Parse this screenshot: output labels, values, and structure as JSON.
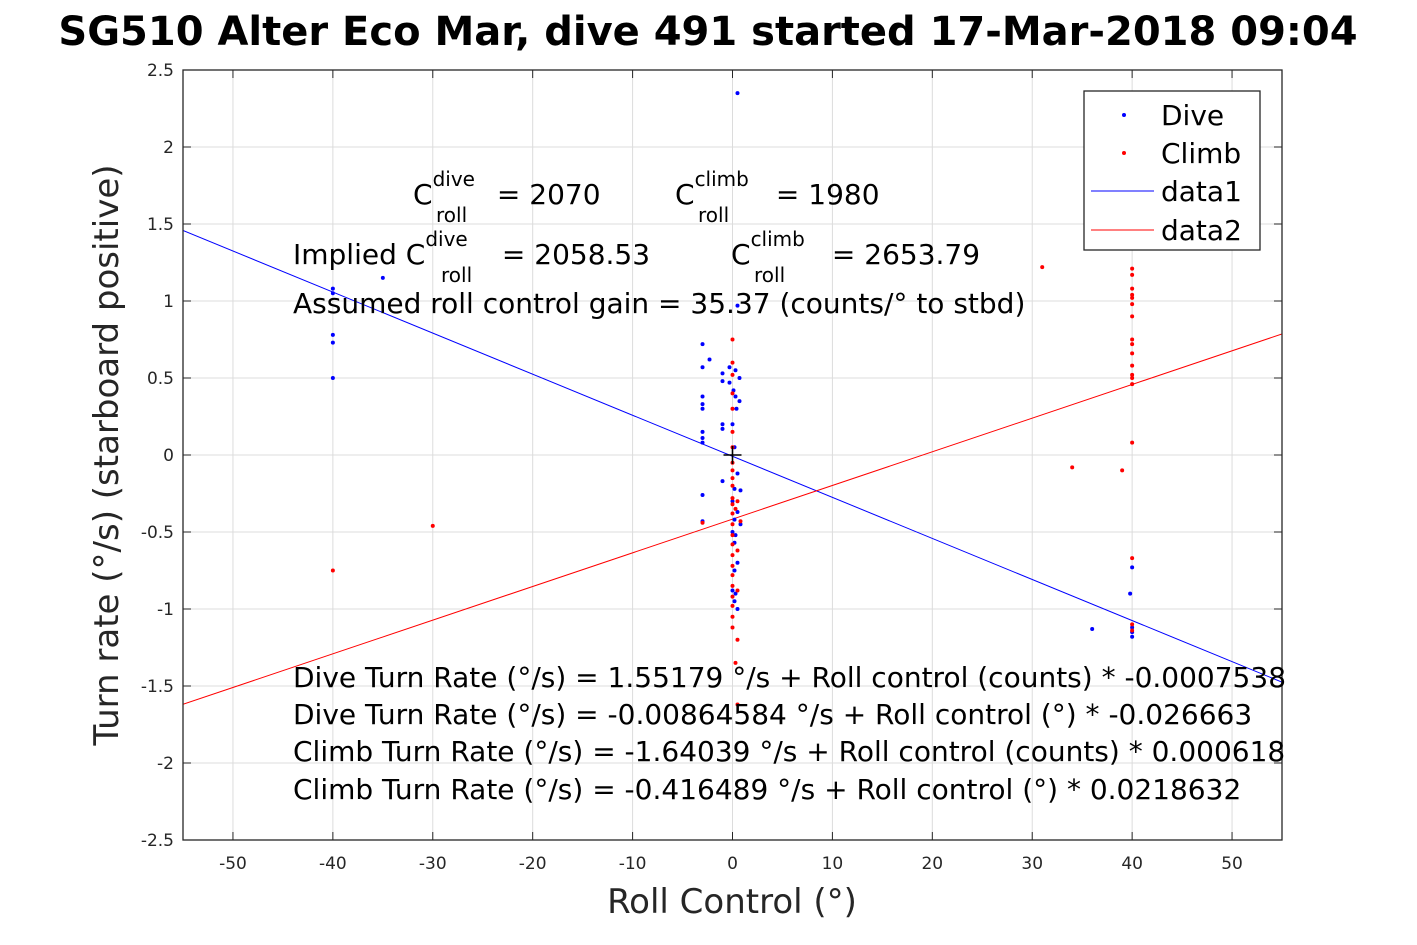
{
  "chart_data": {
    "type": "scatter",
    "title": "SG510 Alter Eco Mar, dive 491 started 17-Mar-2018 09:04",
    "xlabel": "Roll Control (°)",
    "ylabel": "Turn rate (°/s) (starboard positive)",
    "xlim": [
      -55,
      55
    ],
    "ylim": [
      -2.5,
      2.5
    ],
    "grid": true,
    "legend_position": "top-right",
    "x_ticks": [
      -50,
      -40,
      -30,
      -20,
      -10,
      0,
      10,
      20,
      30,
      40,
      50
    ],
    "y_ticks": [
      2.5,
      2,
      1.5,
      1,
      0.5,
      0,
      -0.5,
      -1,
      -1.5,
      -2,
      -2.5
    ],
    "x_tick_labels": [
      "-50",
      "-40",
      "-30",
      "-20",
      "-10",
      "0",
      "10",
      "20",
      "30",
      "40",
      "50"
    ],
    "y_tick_labels": [
      "2.5",
      "2",
      "1.5",
      "1",
      "0.5",
      "0",
      "-0.5",
      "-1",
      "-1.5",
      "-2",
      "-2.5"
    ],
    "series": [
      {
        "name": "Dive",
        "kind": "points",
        "color": "#0000ff",
        "points": [
          [
            -40,
            1.08
          ],
          [
            -40,
            1.05
          ],
          [
            -40,
            0.78
          ],
          [
            -40,
            0.73
          ],
          [
            -40,
            0.5
          ],
          [
            -35,
            1.15
          ],
          [
            -3,
            0.72
          ],
          [
            -2.3,
            0.62
          ],
          [
            -3,
            0.57
          ],
          [
            -1,
            0.53
          ],
          [
            -1,
            0.48
          ],
          [
            -3,
            0.38
          ],
          [
            -3,
            0.33
          ],
          [
            -3,
            0.3
          ],
          [
            -1,
            0.2
          ],
          [
            -1,
            0.17
          ],
          [
            -3,
            0.15
          ],
          [
            -3,
            0.11
          ],
          [
            -3,
            0.08
          ],
          [
            -1,
            -0.17
          ],
          [
            -3,
            -0.26
          ],
          [
            -3,
            -0.43
          ],
          [
            -0.3,
            0.57
          ],
          [
            0.3,
            0.55
          ],
          [
            -0.3,
            0.47
          ],
          [
            0.7,
            0.5
          ],
          [
            0.1,
            0.42
          ],
          [
            0.3,
            0.38
          ],
          [
            0.7,
            0.35
          ],
          [
            0.4,
            0.3
          ],
          [
            0,
            0.2
          ],
          [
            0.2,
            0.05
          ],
          [
            0.5,
            -0.12
          ],
          [
            0.2,
            -0.22
          ],
          [
            0.8,
            -0.23
          ],
          [
            0,
            -0.3
          ],
          [
            0.5,
            -0.37
          ],
          [
            0.2,
            -0.42
          ],
          [
            0.8,
            -0.45
          ],
          [
            0,
            -0.5
          ],
          [
            0.3,
            -0.52
          ],
          [
            0.2,
            -0.57
          ],
          [
            0.5,
            -0.7
          ],
          [
            0.2,
            -0.75
          ],
          [
            0,
            -0.88
          ],
          [
            0.3,
            -0.9
          ],
          [
            0.2,
            -0.95
          ],
          [
            0.5,
            -1.0
          ],
          [
            0.5,
            0.97
          ],
          [
            0.5,
            2.35
          ],
          [
            36,
            -1.13
          ],
          [
            39.8,
            -0.9
          ],
          [
            40,
            -0.73
          ],
          [
            40,
            -1.12
          ],
          [
            40,
            -1.15
          ],
          [
            40,
            -1.18
          ]
        ]
      },
      {
        "name": "Climb",
        "kind": "points",
        "color": "#ff0000",
        "points": [
          [
            -40,
            -0.75
          ],
          [
            -30,
            -0.46
          ],
          [
            -3,
            -0.44
          ],
          [
            0,
            0.75
          ],
          [
            0,
            0.6
          ],
          [
            0,
            0.52
          ],
          [
            0,
            0.4
          ],
          [
            0,
            0.3
          ],
          [
            0,
            0.15
          ],
          [
            0,
            0.05
          ],
          [
            0,
            -0.05
          ],
          [
            0,
            -0.1
          ],
          [
            0,
            -0.15
          ],
          [
            0,
            -0.2
          ],
          [
            0,
            -0.28
          ],
          [
            0,
            -0.32
          ],
          [
            0,
            -0.38
          ],
          [
            0,
            -0.45
          ],
          [
            0,
            -0.52
          ],
          [
            0,
            -0.58
          ],
          [
            0,
            -0.65
          ],
          [
            0,
            -0.72
          ],
          [
            0,
            -0.78
          ],
          [
            0,
            -0.85
          ],
          [
            0,
            -0.92
          ],
          [
            0,
            -0.98
          ],
          [
            0,
            -1.05
          ],
          [
            0,
            -1.12
          ],
          [
            0.3,
            -0.35
          ],
          [
            0.5,
            -0.3
          ],
          [
            0.5,
            -0.62
          ],
          [
            0.5,
            -0.88
          ],
          [
            0.5,
            -1.2
          ],
          [
            0.8,
            -0.43
          ],
          [
            0.3,
            -1.35
          ],
          [
            0.5,
            -1.62
          ],
          [
            31,
            1.22
          ],
          [
            34,
            -0.08
          ],
          [
            39,
            -0.1
          ],
          [
            40,
            1.21
          ],
          [
            40,
            1.17
          ],
          [
            40,
            1.08
          ],
          [
            40,
            1.04
          ],
          [
            40,
            1.02
          ],
          [
            40,
            0.98
          ],
          [
            40,
            0.9
          ],
          [
            40,
            0.75
          ],
          [
            40,
            0.72
          ],
          [
            40,
            0.66
          ],
          [
            40,
            0.58
          ],
          [
            40,
            0.52
          ],
          [
            40,
            0.5
          ],
          [
            40,
            0.46
          ],
          [
            40,
            0.08
          ],
          [
            40,
            -0.67
          ],
          [
            40,
            -1.1
          ],
          [
            40,
            -1.14
          ]
        ]
      },
      {
        "name": "data1",
        "kind": "line",
        "color": "#0000ff",
        "x": [
          -55,
          55
        ],
        "y": [
          1.458,
          -1.475
        ]
      },
      {
        "name": "data2",
        "kind": "line",
        "color": "#ff0000",
        "x": [
          -55,
          55
        ],
        "y": [
          -1.619,
          0.786
        ]
      }
    ],
    "origin_marker": [
      0,
      0
    ],
    "annotations": {
      "c_dive": {
        "prefix": "C",
        "sup": "dive",
        "sub": "roll",
        "value": " = 2070"
      },
      "c_climb": {
        "prefix": "C",
        "sup": "climb",
        "sub": "roll",
        "value": " = 1980"
      },
      "implied_dive": {
        "prefix": "Implied C",
        "sup": "dive",
        "sub": "roll",
        "value": " = 2058.53"
      },
      "implied_climb": {
        "prefix": "C",
        "sup": "climb",
        "sub": "roll",
        "value": " = 2653.79"
      },
      "gain": "Assumed roll control gain = 35.37 (counts/° to stbd)",
      "eq1": "Dive Turn Rate (°/s) = 1.55179 °/s + Roll control (counts) * -0.0007538",
      "eq2": "Dive Turn Rate (°/s) = -0.00864584 °/s + Roll control (°) * -0.026663",
      "eq3": "Climb Turn Rate (°/s) = -1.64039 °/s + Roll control (counts) * 0.000618",
      "eq4": "Climb Turn Rate (°/s) = -0.416489 °/s + Roll control (°) * 0.0218632"
    },
    "legend": [
      "Dive",
      "Climb",
      "data1",
      "data2"
    ]
  }
}
